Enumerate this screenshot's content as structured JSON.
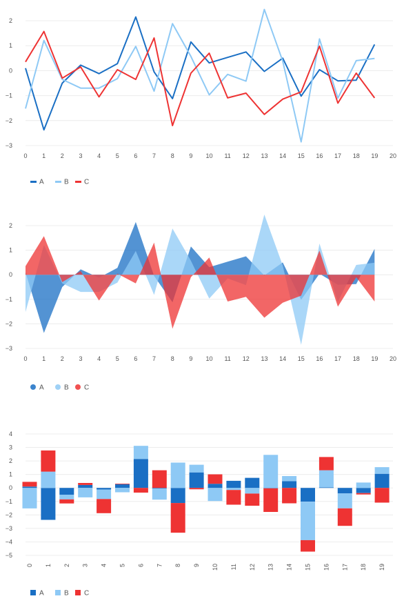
{
  "colors": {
    "A": "#1a6fc4",
    "B": "#8ec9f5",
    "C": "#ee3333"
  },
  "chart_data": [
    {
      "type": "line",
      "title": "",
      "x": [
        0,
        1,
        2,
        3,
        4,
        5,
        6,
        7,
        8,
        9,
        10,
        11,
        12,
        13,
        14,
        15,
        16,
        17,
        18,
        19
      ],
      "xlim": [
        0,
        20
      ],
      "ylim": [
        -3,
        2
      ],
      "x_ticks": [
        "0",
        "1",
        "2",
        "3",
        "4",
        "5",
        "6",
        "7",
        "8",
        "9",
        "10",
        "11",
        "12",
        "13",
        "14",
        "15",
        "16",
        "17",
        "18",
        "19",
        "20"
      ],
      "y_ticks": [
        "2",
        "1",
        "0",
        "−1",
        "−2",
        "−3"
      ],
      "grid": true,
      "legend_position": "bottom-left",
      "series": [
        {
          "name": "A",
          "values": [
            0.1,
            -2.37,
            -0.5,
            0.22,
            -0.12,
            0.28,
            2.15,
            -0.05,
            -1.12,
            1.15,
            0.31,
            0.53,
            0.75,
            -0.03,
            0.5,
            -1.02,
            0.04,
            -0.41,
            -0.38,
            1.05
          ]
        },
        {
          "name": "B",
          "values": [
            -1.52,
            1.21,
            -0.35,
            -0.7,
            -0.7,
            -0.32,
            0.97,
            -0.82,
            1.88,
            0.57,
            -0.97,
            -0.15,
            -0.42,
            2.45,
            0.38,
            -2.85,
            1.27,
            -1.1,
            0.4,
            0.49
          ]
        },
        {
          "name": "C",
          "values": [
            0.35,
            1.57,
            -0.3,
            0.15,
            -1.05,
            0.04,
            -0.35,
            1.31,
            -2.2,
            -0.1,
            0.7,
            -1.09,
            -0.9,
            -1.75,
            -1.14,
            -0.85,
            0.98,
            -1.3,
            -0.1,
            -1.09
          ]
        }
      ]
    },
    {
      "type": "area",
      "title": "",
      "x": [
        0,
        1,
        2,
        3,
        4,
        5,
        6,
        7,
        8,
        9,
        10,
        11,
        12,
        13,
        14,
        15,
        16,
        17,
        18,
        19
      ],
      "xlim": [
        0,
        20
      ],
      "ylim": [
        -3,
        2
      ],
      "x_ticks": [
        "0",
        "1",
        "2",
        "3",
        "4",
        "5",
        "6",
        "7",
        "8",
        "9",
        "10",
        "11",
        "12",
        "13",
        "14",
        "15",
        "16",
        "17",
        "18",
        "19",
        "20"
      ],
      "y_ticks": [
        "2",
        "1",
        "0",
        "−1",
        "−2",
        "−3"
      ],
      "grid": true,
      "legend_position": "bottom-left",
      "series": [
        {
          "name": "A",
          "values": [
            0.1,
            -2.37,
            -0.5,
            0.22,
            -0.12,
            0.28,
            2.15,
            -0.05,
            -1.12,
            1.15,
            0.31,
            0.53,
            0.75,
            -0.03,
            0.5,
            -1.02,
            0.04,
            -0.41,
            -0.38,
            1.05
          ]
        },
        {
          "name": "B",
          "values": [
            -1.52,
            1.21,
            -0.35,
            -0.7,
            -0.7,
            -0.32,
            0.97,
            -0.82,
            1.88,
            0.57,
            -0.97,
            -0.15,
            -0.42,
            2.45,
            0.38,
            -2.85,
            1.27,
            -1.1,
            0.4,
            0.49
          ]
        },
        {
          "name": "C",
          "values": [
            0.35,
            1.57,
            -0.3,
            0.15,
            -1.05,
            0.04,
            -0.35,
            1.31,
            -2.2,
            -0.1,
            0.7,
            -1.09,
            -0.9,
            -1.75,
            -1.14,
            -0.85,
            0.98,
            -1.3,
            -0.1,
            -1.09
          ]
        }
      ]
    },
    {
      "type": "bar",
      "stacked": true,
      "title": "",
      "categories": [
        "0",
        "1",
        "2",
        "3",
        "4",
        "5",
        "6",
        "7",
        "8",
        "9",
        "10",
        "11",
        "12",
        "13",
        "14",
        "15",
        "16",
        "17",
        "18",
        "19"
      ],
      "ylim": [
        -5,
        4
      ],
      "y_ticks": [
        "4",
        "3",
        "2",
        "1",
        "0",
        "−1",
        "−2",
        "−3",
        "−4",
        "−5"
      ],
      "grid": true,
      "legend_position": "bottom-left",
      "series": [
        {
          "name": "A",
          "values": [
            0.1,
            -2.37,
            -0.5,
            0.22,
            -0.12,
            0.28,
            2.15,
            -0.05,
            -1.12,
            1.15,
            0.31,
            0.53,
            0.75,
            -0.03,
            0.5,
            -1.02,
            0.04,
            -0.41,
            -0.38,
            1.05
          ]
        },
        {
          "name": "B",
          "values": [
            -1.52,
            1.21,
            -0.35,
            -0.7,
            -0.7,
            -0.32,
            0.97,
            -0.82,
            1.88,
            0.57,
            -0.97,
            -0.15,
            -0.42,
            2.45,
            0.38,
            -2.85,
            1.27,
            -1.1,
            0.4,
            0.49
          ]
        },
        {
          "name": "C",
          "values": [
            0.35,
            1.57,
            -0.3,
            0.15,
            -1.05,
            0.04,
            -0.35,
            1.31,
            -2.2,
            -0.1,
            0.7,
            -1.09,
            -0.9,
            -1.75,
            -1.14,
            -0.85,
            0.98,
            -1.3,
            -0.1,
            -1.09
          ]
        }
      ]
    }
  ]
}
